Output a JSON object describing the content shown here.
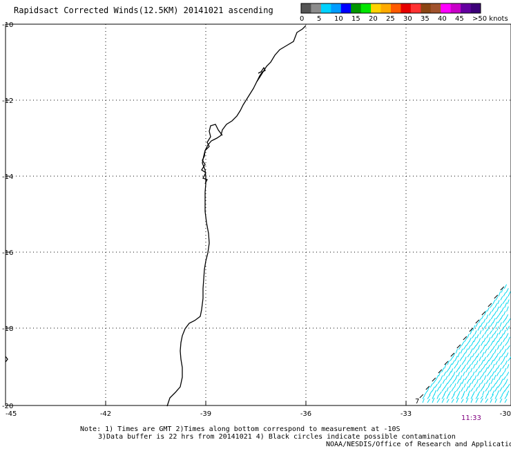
{
  "title": "Rapidsact Corrected Winds(12.5KM) 20141021 ascending",
  "scale": {
    "labels": [
      "0",
      "5",
      "10",
      "15",
      "20",
      "25",
      "30",
      "35",
      "40",
      "45",
      ">50 knots"
    ],
    "colors": [
      "#555555",
      "#8c8c8c",
      "#00d2ff",
      "#009cff",
      "#0000ff",
      "#009600",
      "#00e600",
      "#ffd200",
      "#ffaa00",
      "#ff5a00",
      "#e60000",
      "#ff3232",
      "#8b4513",
      "#a0522d",
      "#ff00ff",
      "#c800c8",
      "#6400a0",
      "#3c0078"
    ]
  },
  "axes": {
    "lat_labels": [
      "-10",
      "-12",
      "-14",
      "-16",
      "-18",
      "-20"
    ],
    "lon_labels": [
      "-45",
      "-42",
      "-39",
      "-36",
      "-33",
      "-30"
    ]
  },
  "time_label": "11:33",
  "swath_marker": "7",
  "notes": {
    "line1": "Note: 1) Times are GMT 2)Times along bottom correspond to measurement at -10S",
    "line2": "3)Data buffer is 22 hrs from 20141021 4) Black circles indicate possible contamination",
    "line3": "NOAA/NESDIS/Office of Research and Applications"
  },
  "colors": {
    "wind_barb": "#00d8f0",
    "time_label": "#800080",
    "coast": "#000000",
    "grid": "#000000"
  }
}
